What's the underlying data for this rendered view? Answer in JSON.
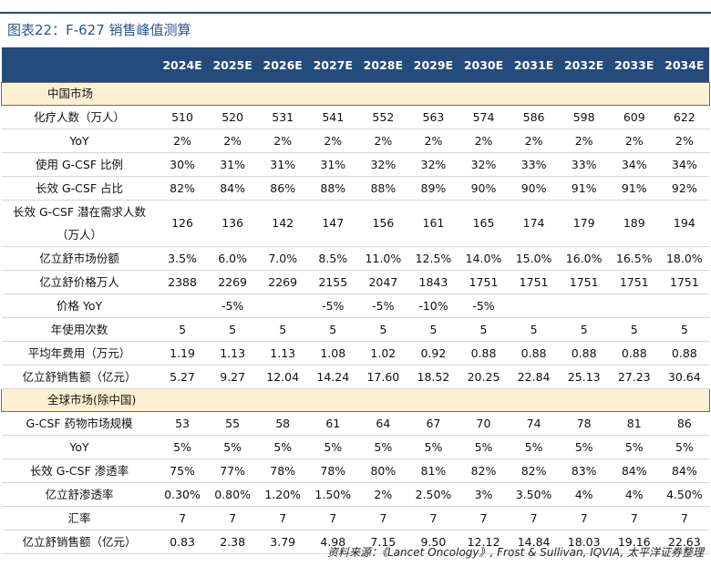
{
  "title": "图表22：F-627 销售峰值测算",
  "table": {
    "columns": [
      "2024E",
      "2025E",
      "2026E",
      "2027E",
      "2028E",
      "2029E",
      "2030E",
      "2031E",
      "2032E",
      "2033E",
      "2034E"
    ],
    "rows": [
      {
        "section": "中国市场"
      },
      {
        "label": "化疗人数（万人）",
        "cells": [
          "510",
          "520",
          "531",
          "541",
          "552",
          "563",
          "574",
          "586",
          "598",
          "609",
          "622"
        ]
      },
      {
        "label": "YoY",
        "cells": [
          "2%",
          "2%",
          "2%",
          "2%",
          "2%",
          "2%",
          "2%",
          "2%",
          "2%",
          "2%",
          "2%"
        ]
      },
      {
        "label": "使用 G-CSF 比例",
        "cells": [
          "30%",
          "31%",
          "31%",
          "31%",
          "32%",
          "32%",
          "32%",
          "33%",
          "33%",
          "34%",
          "34%"
        ]
      },
      {
        "label": "长效 G-CSF 占比",
        "cells": [
          "82%",
          "84%",
          "86%",
          "88%",
          "88%",
          "89%",
          "90%",
          "90%",
          "91%",
          "91%",
          "92%"
        ]
      },
      {
        "label": "长效 G-CSF 潜在需求人数（万人）",
        "cells": [
          "126",
          "136",
          "142",
          "147",
          "156",
          "161",
          "165",
          "174",
          "179",
          "189",
          "194"
        ]
      },
      {
        "label": "亿立舒市场份额",
        "cells": [
          "3.5%",
          "6.0%",
          "7.0%",
          "8.5%",
          "11.0%",
          "12.5%",
          "14.0%",
          "15.0%",
          "16.0%",
          "16.5%",
          "18.0%"
        ]
      },
      {
        "label": "亿立舒价格万人",
        "cells": [
          "2388",
          "2269",
          "2269",
          "2155",
          "2047",
          "1843",
          "1751",
          "1751",
          "1751",
          "1751",
          "1751"
        ]
      },
      {
        "label": "价格 YoY",
        "cells": [
          null,
          "-5%",
          null,
          "-5%",
          "-5%",
          "-10%",
          "-5%",
          null,
          null,
          null,
          null
        ]
      },
      {
        "label": "年使用次数",
        "cells": [
          "5",
          "5",
          "5",
          "5",
          "5",
          "5",
          "5",
          "5",
          "5",
          "5",
          "5"
        ]
      },
      {
        "label": "平均年费用（万元）",
        "cells": [
          "1.19",
          "1.13",
          "1.13",
          "1.08",
          "1.02",
          "0.92",
          "0.88",
          "0.88",
          "0.88",
          "0.88",
          "0.88"
        ]
      },
      {
        "label": "亿立舒销售额（亿元）",
        "cells": [
          "5.27",
          "9.27",
          "12.04",
          "14.24",
          "17.60",
          "18.52",
          "20.25",
          "22.84",
          "25.13",
          "27.23",
          "30.64"
        ]
      },
      {
        "section": "全球市场(除中国)"
      },
      {
        "label": "G-CSF 药物市场规模",
        "cells": [
          "53",
          "55",
          "58",
          "61",
          "64",
          "67",
          "70",
          "74",
          "78",
          "81",
          "86"
        ]
      },
      {
        "label": "YoY",
        "cells": [
          "5%",
          "5%",
          "5%",
          "5%",
          "5%",
          "5%",
          "5%",
          "5%",
          "5%",
          "5%",
          "5%"
        ]
      },
      {
        "label": "长效 G-CSF 渗透率",
        "cells": [
          "75%",
          "77%",
          "78%",
          "78%",
          "80%",
          "81%",
          "82%",
          "82%",
          "83%",
          "84%",
          "84%"
        ]
      },
      {
        "label": "亿立舒渗透率",
        "cells": [
          "0.30%",
          "0.80%",
          "1.20%",
          "1.50%",
          "2%",
          "2.50%",
          "3%",
          "3.50%",
          "4%",
          "4%",
          "4.50%"
        ]
      },
      {
        "label": "汇率",
        "cells": [
          "7",
          "7",
          "7",
          "7",
          "7",
          "7",
          "7",
          "7",
          "7",
          "7",
          "7"
        ]
      },
      {
        "label": "亿立舒销售额（亿元）",
        "cells": [
          "0.83",
          "2.38",
          "3.79",
          "4.98",
          "7.15",
          "9.50",
          "12.12",
          "14.84",
          "18.03",
          "19.16",
          "22.63"
        ]
      }
    ]
  },
  "source": "资料来源：《Lancet Oncology》, Frost & Sullivan, IQVIA, 太平洋证券整理"
}
